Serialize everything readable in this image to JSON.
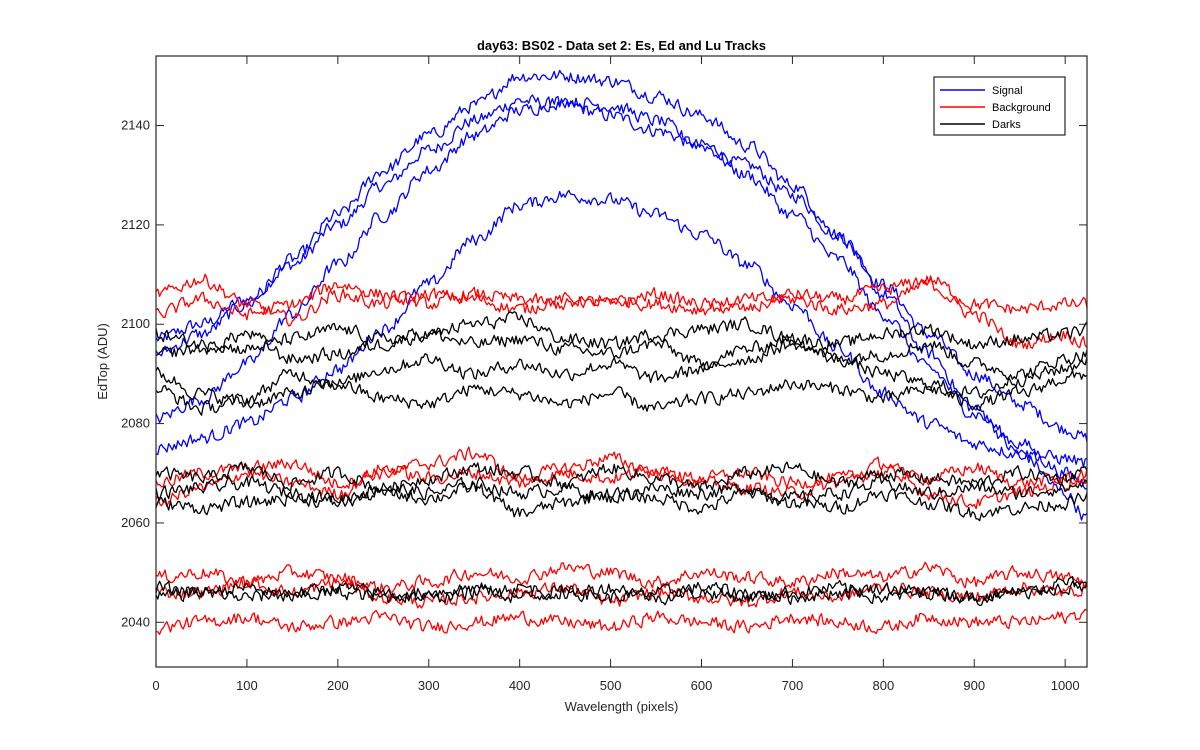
{
  "chart_data": {
    "type": "line",
    "title": "day63: BS02 - Data set 2: Es, Ed and Lu Tracks",
    "xlabel": "Wavelength (pixels)",
    "ylabel": "EdTop (ADU)",
    "xlim": [
      0,
      1024
    ],
    "ylim": [
      2031,
      2154
    ],
    "xticks": [
      0,
      100,
      200,
      300,
      400,
      500,
      600,
      700,
      800,
      900,
      1000
    ],
    "yticks": [
      2040,
      2060,
      2080,
      2100,
      2120,
      2140
    ],
    "grid": false,
    "legend_position": "top-right",
    "legend": [
      {
        "label": "Signal",
        "color": "#0000ff"
      },
      {
        "label": "Background",
        "color": "#ff0000"
      },
      {
        "label": "Darks",
        "color": "#000000"
      }
    ],
    "series": [
      {
        "group": "Signal",
        "color": "#0000ff",
        "x": [
          0,
          50,
          100,
          150,
          200,
          250,
          300,
          350,
          400,
          450,
          500,
          550,
          600,
          650,
          700,
          750,
          800,
          850,
          900,
          950,
          1000,
          1024
        ],
        "y": [
          2097,
          2100,
          2105,
          2112,
          2120,
          2128,
          2135,
          2141,
          2145,
          2144,
          2142,
          2139,
          2136,
          2132,
          2126,
          2118,
          2108,
          2098,
          2090,
          2084,
          2079,
          2077
        ]
      },
      {
        "group": "Signal",
        "color": "#0000ff",
        "x": [
          0,
          50,
          100,
          150,
          200,
          250,
          300,
          350,
          400,
          450,
          500,
          550,
          600,
          650,
          700,
          750,
          800,
          850,
          900,
          950,
          1000,
          1024
        ],
        "y": [
          2094,
          2098,
          2104,
          2113,
          2122,
          2131,
          2138,
          2144,
          2150,
          2150,
          2149,
          2146,
          2142,
          2136,
          2128,
          2118,
          2106,
          2094,
          2083,
          2074,
          2066,
          2061
        ]
      },
      {
        "group": "Signal",
        "color": "#0000ff",
        "x": [
          0,
          50,
          100,
          150,
          200,
          250,
          300,
          350,
          400,
          450,
          500,
          550,
          600,
          650,
          700,
          750,
          800,
          850,
          900,
          950,
          1000,
          1024
        ],
        "y": [
          2081,
          2085,
          2092,
          2102,
          2112,
          2122,
          2131,
          2138,
          2143,
          2145,
          2144,
          2141,
          2136,
          2130,
          2122,
          2113,
          2102,
          2091,
          2082,
          2076,
          2070,
          2068
        ]
      },
      {
        "group": "Signal",
        "color": "#0000ff",
        "x": [
          0,
          50,
          100,
          150,
          200,
          250,
          300,
          350,
          400,
          450,
          500,
          550,
          600,
          650,
          700,
          750,
          800,
          850,
          900,
          950,
          1000,
          1024
        ],
        "y": [
          2075,
          2077,
          2080,
          2085,
          2091,
          2099,
          2108,
          2117,
          2124,
          2126,
          2125,
          2122,
          2118,
          2112,
          2104,
          2095,
          2086,
          2080,
          2076,
          2074,
          2073,
          2072
        ]
      },
      {
        "group": "Background",
        "color": "#ff0000",
        "x": [
          0,
          50,
          100,
          150,
          200,
          250,
          300,
          350,
          400,
          450,
          500,
          550,
          600,
          650,
          700,
          750,
          800,
          850,
          900,
          950,
          1000,
          1024
        ],
        "y": [
          2106,
          2109,
          2104,
          2101,
          2106,
          2104,
          2106,
          2105,
          2103,
          2105,
          2104,
          2106,
          2104,
          2103,
          2106,
          2105,
          2107,
          2109,
          2104,
          2103,
          2104,
          2104
        ]
      },
      {
        "group": "Background",
        "color": "#ff0000",
        "x": [
          0,
          50,
          100,
          150,
          200,
          250,
          300,
          350,
          400,
          450,
          500,
          550,
          600,
          650,
          700,
          750,
          800,
          850,
          900,
          950,
          1000,
          1024
        ],
        "y": [
          2102,
          2105,
          2102,
          2104,
          2108,
          2106,
          2104,
          2106,
          2105,
          2104,
          2105,
          2104,
          2103,
          2105,
          2105,
          2103,
          2104,
          2108,
          2102,
          2096,
          2098,
          2096
        ]
      },
      {
        "group": "Background",
        "color": "#ff0000",
        "x": [
          0,
          50,
          100,
          150,
          200,
          250,
          300,
          350,
          400,
          450,
          500,
          550,
          600,
          650,
          700,
          750,
          800,
          850,
          900,
          950,
          1000,
          1024
        ],
        "y": [
          2068,
          2070,
          2071,
          2072,
          2068,
          2070,
          2072,
          2074,
          2069,
          2071,
          2073,
          2070,
          2069,
          2070,
          2068,
          2069,
          2070,
          2069,
          2071,
          2068,
          2069,
          2070
        ]
      },
      {
        "group": "Background",
        "color": "#ff0000",
        "x": [
          0,
          50,
          100,
          150,
          200,
          250,
          300,
          350,
          400,
          450,
          500,
          550,
          600,
          650,
          700,
          750,
          800,
          850,
          900,
          950,
          1000,
          1024
        ],
        "y": [
          2064,
          2067,
          2070,
          2068,
          2066,
          2071,
          2069,
          2070,
          2068,
          2070,
          2069,
          2071,
          2068,
          2067,
          2066,
          2068,
          2072,
          2066,
          2064,
          2066,
          2068,
          2069
        ]
      },
      {
        "group": "Background",
        "color": "#ff0000",
        "x": [
          0,
          50,
          100,
          150,
          200,
          250,
          300,
          350,
          400,
          450,
          500,
          550,
          600,
          650,
          700,
          750,
          800,
          850,
          900,
          950,
          1000,
          1024
        ],
        "y": [
          2049,
          2050,
          2048,
          2050,
          2049,
          2047,
          2048,
          2050,
          2049,
          2051,
          2050,
          2048,
          2050,
          2049,
          2048,
          2050,
          2049,
          2051,
          2048,
          2050,
          2049,
          2048
        ]
      },
      {
        "group": "Background",
        "color": "#ff0000",
        "x": [
          0,
          50,
          100,
          150,
          200,
          250,
          300,
          350,
          400,
          450,
          500,
          550,
          600,
          650,
          700,
          750,
          800,
          850,
          900,
          950,
          1000,
          1024
        ],
        "y": [
          2046,
          2046,
          2048,
          2046,
          2048,
          2045,
          2044,
          2045,
          2046,
          2047,
          2044,
          2046,
          2045,
          2044,
          2046,
          2045,
          2047,
          2046,
          2045,
          2047,
          2046,
          2047
        ]
      },
      {
        "group": "Background",
        "color": "#ff0000",
        "x": [
          0,
          50,
          100,
          150,
          200,
          250,
          300,
          350,
          400,
          450,
          500,
          550,
          600,
          650,
          700,
          750,
          800,
          850,
          900,
          950,
          1000,
          1024
        ],
        "y": [
          2039,
          2040,
          2041,
          2039,
          2040,
          2041,
          2039,
          2040,
          2041,
          2040,
          2039,
          2041,
          2040,
          2039,
          2041,
          2040,
          2039,
          2041,
          2040,
          2040,
          2041,
          2042
        ]
      },
      {
        "group": "Darks",
        "color": "#000000",
        "x": [
          0,
          50,
          100,
          150,
          200,
          250,
          300,
          350,
          400,
          450,
          500,
          550,
          600,
          650,
          700,
          750,
          800,
          850,
          900,
          950,
          1000,
          1024
        ],
        "y": [
          2098,
          2096,
          2095,
          2097,
          2099,
          2097,
          2098,
          2100,
          2101,
          2097,
          2096,
          2098,
          2099,
          2100,
          2097,
          2096,
          2098,
          2099,
          2096,
          2097,
          2098,
          2099
        ]
      },
      {
        "group": "Darks",
        "color": "#000000",
        "x": [
          0,
          50,
          100,
          150,
          200,
          250,
          300,
          350,
          400,
          450,
          500,
          550,
          600,
          650,
          700,
          750,
          800,
          850,
          900,
          950,
          1000,
          1024
        ],
        "y": [
          2094,
          2095,
          2098,
          2093,
          2094,
          2096,
          2098,
          2096,
          2097,
          2095,
          2094,
          2096,
          2092,
          2095,
          2097,
          2093,
          2094,
          2096,
          2092,
          2090,
          2093,
          2094
        ]
      },
      {
        "group": "Darks",
        "color": "#000000",
        "x": [
          0,
          50,
          100,
          150,
          200,
          250,
          300,
          350,
          400,
          450,
          500,
          550,
          600,
          650,
          700,
          750,
          800,
          850,
          900,
          950,
          1000,
          1024
        ],
        "y": [
          2087,
          2083,
          2085,
          2090,
          2088,
          2091,
          2093,
          2090,
          2092,
          2090,
          2092,
          2089,
          2091,
          2093,
          2096,
          2093,
          2090,
          2088,
          2086,
          2089,
          2091,
          2093
        ]
      },
      {
        "group": "Darks",
        "color": "#000000",
        "x": [
          0,
          50,
          100,
          150,
          200,
          250,
          300,
          350,
          400,
          450,
          500,
          550,
          600,
          650,
          700,
          750,
          800,
          850,
          900,
          950,
          1000,
          1024
        ],
        "y": [
          2090,
          2086,
          2084,
          2086,
          2088,
          2085,
          2084,
          2087,
          2086,
          2084,
          2086,
          2083,
          2085,
          2086,
          2088,
          2087,
          2085,
          2087,
          2084,
          2086,
          2089,
          2090
        ]
      },
      {
        "group": "Darks",
        "color": "#000000",
        "x": [
          0,
          50,
          100,
          150,
          200,
          250,
          300,
          350,
          400,
          450,
          500,
          550,
          600,
          650,
          700,
          750,
          800,
          850,
          900,
          950,
          1000,
          1024
        ],
        "y": [
          2070,
          2069,
          2071,
          2068,
          2070,
          2067,
          2069,
          2071,
          2070,
          2068,
          2071,
          2069,
          2067,
          2070,
          2071,
          2068,
          2070,
          2069,
          2068,
          2070,
          2069,
          2071
        ]
      },
      {
        "group": "Darks",
        "color": "#000000",
        "x": [
          0,
          50,
          100,
          150,
          200,
          250,
          300,
          350,
          400,
          450,
          500,
          550,
          600,
          650,
          700,
          750,
          800,
          850,
          900,
          950,
          1000,
          1024
        ],
        "y": [
          2066,
          2067,
          2068,
          2066,
          2065,
          2067,
          2066,
          2068,
          2066,
          2067,
          2065,
          2067,
          2066,
          2067,
          2065,
          2066,
          2068,
          2066,
          2067,
          2066,
          2067,
          2068
        ]
      },
      {
        "group": "Darks",
        "color": "#000000",
        "x": [
          0,
          50,
          100,
          150,
          200,
          250,
          300,
          350,
          400,
          450,
          500,
          550,
          600,
          650,
          700,
          750,
          800,
          850,
          900,
          950,
          1000,
          1024
        ],
        "y": [
          2064,
          2063,
          2064,
          2065,
          2064,
          2066,
          2065,
          2067,
          2062,
          2064,
          2066,
          2065,
          2063,
          2066,
          2064,
          2063,
          2066,
          2064,
          2062,
          2063,
          2064,
          2065
        ]
      },
      {
        "group": "Darks",
        "color": "#000000",
        "x": [
          0,
          50,
          100,
          150,
          200,
          250,
          300,
          350,
          400,
          450,
          500,
          550,
          600,
          650,
          700,
          750,
          800,
          850,
          900,
          950,
          1000,
          1024
        ],
        "y": [
          2047,
          2046,
          2045,
          2046,
          2047,
          2046,
          2045,
          2046,
          2047,
          2046,
          2045,
          2046,
          2047,
          2046,
          2045,
          2046,
          2047,
          2046,
          2045,
          2046,
          2047,
          2047
        ]
      },
      {
        "group": "Darks",
        "color": "#000000",
        "x": [
          0,
          50,
          100,
          150,
          200,
          250,
          300,
          350,
          400,
          450,
          500,
          550,
          600,
          650,
          700,
          750,
          800,
          850,
          900,
          950,
          1000,
          1024
        ],
        "y": [
          2045,
          2046,
          2047,
          2045,
          2046,
          2045,
          2046,
          2047,
          2045,
          2046,
          2047,
          2045,
          2046,
          2045,
          2046,
          2047,
          2045,
          2046,
          2045,
          2046,
          2048,
          2047
        ]
      }
    ]
  }
}
